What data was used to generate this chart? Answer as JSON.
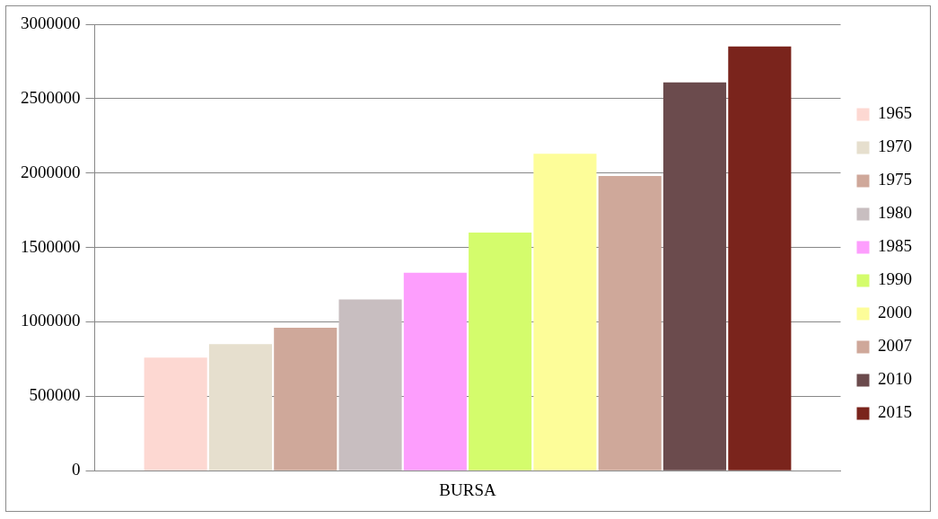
{
  "chart_data": {
    "type": "bar",
    "categories": [
      "BURSA"
    ],
    "series": [
      {
        "name": "1965",
        "color": "#fdd8d2",
        "values": [
          760000
        ]
      },
      {
        "name": "1970",
        "color": "#e6dfce",
        "values": [
          850000
        ]
      },
      {
        "name": "1975",
        "color": "#cfa89a",
        "values": [
          960000
        ]
      },
      {
        "name": "1980",
        "color": "#c8bec0",
        "values": [
          1150000
        ]
      },
      {
        "name": "1985",
        "color": "#fd9efd",
        "values": [
          1330000
        ]
      },
      {
        "name": "1990",
        "color": "#d4fc6c",
        "values": [
          1600000
        ]
      },
      {
        "name": "2000",
        "color": "#fdfd99",
        "values": [
          2130000
        ]
      },
      {
        "name": "2007",
        "color": "#cfa89a",
        "values": [
          1980000
        ]
      },
      {
        "name": "2010",
        "color": "#6b4b4d",
        "values": [
          2610000
        ]
      },
      {
        "name": "2015",
        "color": "#7a241c",
        "values": [
          2850000
        ]
      }
    ],
    "ylim": [
      0,
      3000000
    ],
    "yticks": [
      0,
      500000,
      1000000,
      1500000,
      2000000,
      2500000,
      3000000
    ],
    "grid": "y",
    "legend": "right"
  }
}
